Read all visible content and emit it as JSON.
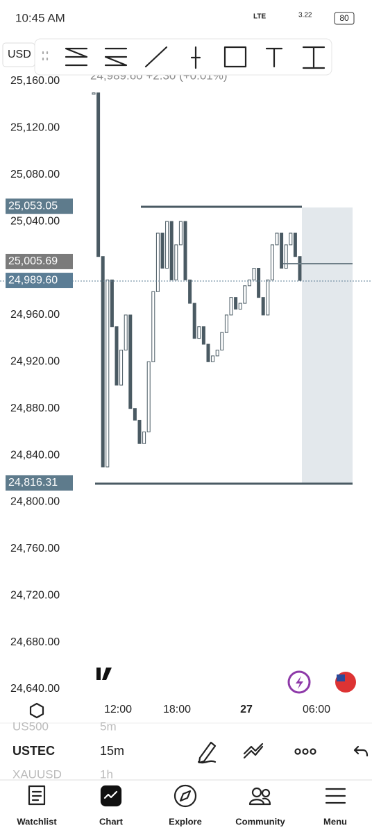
{
  "status_bar": {
    "time": "10:45 AM",
    "network": "LTE",
    "speed": "3.22",
    "battery": "80"
  },
  "header": {
    "currency": "USD",
    "quote": "24,989.60  +2.30 (+0.01%)"
  },
  "price_axis": {
    "ylim": [
      24640,
      25160
    ],
    "labels": [
      {
        "value": 25160,
        "label": "25,160.00"
      },
      {
        "value": 25120,
        "label": "25,120.00"
      },
      {
        "value": 25080,
        "label": "25,080.00"
      },
      {
        "value": 25040,
        "label": "25,040.00"
      },
      {
        "value": 24960,
        "label": "24,960.00"
      },
      {
        "value": 24920,
        "label": "24,920.00"
      },
      {
        "value": 24880,
        "label": "24,880.00"
      },
      {
        "value": 24840,
        "label": "24,840.00"
      },
      {
        "value": 24800,
        "label": "24,800.00"
      },
      {
        "value": 24760,
        "label": "24,760.00"
      },
      {
        "value": 24720,
        "label": "24,720.00"
      },
      {
        "value": 24680,
        "label": "24,680.00"
      },
      {
        "value": 24640,
        "label": "24,640.00"
      }
    ]
  },
  "price_badges": [
    {
      "value": 25053.05,
      "label": "25,053.05"
    },
    {
      "value": 25005.69,
      "label": "25,005.69"
    },
    {
      "value": 24989.6,
      "label": "24,989.60"
    },
    {
      "value": 24816.31,
      "label": "24,816.31"
    }
  ],
  "closes": [
    25150,
    25010,
    24830,
    24990,
    24950,
    24900,
    24930,
    24960,
    24880,
    24870,
    24850,
    24860,
    24920,
    24980,
    25030,
    25000,
    25040,
    24990,
    25020,
    25040,
    24990,
    24970,
    24940,
    24950,
    24935,
    24920,
    24925,
    24930,
    24945,
    24960,
    24975,
    24965,
    24970,
    24985,
    24990,
    25000,
    24975,
    24960,
    24990,
    25020,
    25030,
    25000,
    25020,
    25030,
    25010,
    24989.6
  ],
  "time_axis": [
    "12:00",
    "18:00",
    "27",
    "06:00"
  ],
  "symbol_bar": {
    "prev": [
      "US500",
      "5m"
    ],
    "symbol": "USTEC",
    "interval": "15m",
    "next": [
      "XAUUSD",
      "1h"
    ]
  },
  "nav": [
    "Watchlist",
    "Chart",
    "Explore",
    "Community",
    "Menu"
  ]
}
